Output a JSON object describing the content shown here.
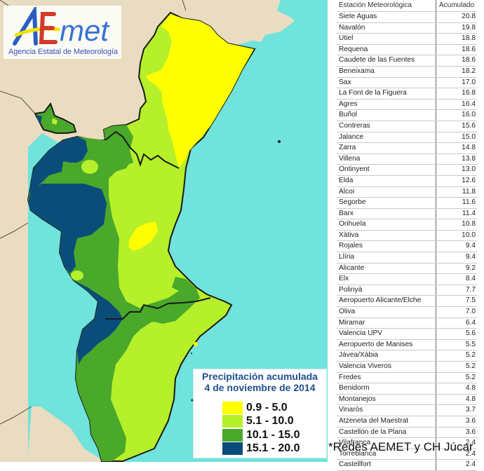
{
  "logo": {
    "brand": "AEmet",
    "subtitle": "Agencia Estatal de Meteorología",
    "colors": {
      "A": "#2a5fc0",
      "E": "#d43a2a",
      "met": "#3a72d0",
      "swoosh": "#f2e200"
    }
  },
  "map": {
    "colors": {
      "land_outside": "#e9dcc0",
      "sea": "#6fe3dc",
      "range_0_9_5_0": "#ffff00",
      "range_5_1_10_0": "#b5f02a",
      "range_10_1_15_0": "#4aa82a",
      "range_15_1_20_0": "#0b4d7a",
      "border": "#1a1a1a"
    }
  },
  "legend": {
    "title_line1": "Precipitación acumulada",
    "title_line2": "4 de noviembre de 2014",
    "items": [
      {
        "label": "0.9 - 5.0",
        "color": "#ffff00"
      },
      {
        "label": "5.1 - 10.0",
        "color": "#b5f02a"
      },
      {
        "label": "10.1 - 15.0",
        "color": "#4aa82a"
      },
      {
        "label": "15.1 - 20.0",
        "color": "#0b4d7a"
      }
    ]
  },
  "table": {
    "headers": {
      "station": "Estación Meteorológica",
      "value": "Acumulado"
    },
    "rows": [
      {
        "station": "Siete Aguas",
        "value": "20.8"
      },
      {
        "station": "Navalón",
        "value": "19.8"
      },
      {
        "station": "Utiel",
        "value": "18.8"
      },
      {
        "station": "Requena",
        "value": "18.6"
      },
      {
        "station": "Caudete de las Fuentes",
        "value": "18.6"
      },
      {
        "station": "Beneixama",
        "value": "18.2"
      },
      {
        "station": "Sax",
        "value": "17.0"
      },
      {
        "station": "La Font de la Figuera",
        "value": "16.8"
      },
      {
        "station": "Agres",
        "value": "16.4"
      },
      {
        "station": "Buñol",
        "value": "16.0"
      },
      {
        "station": "Contreras",
        "value": "15.6"
      },
      {
        "station": "Jalance",
        "value": "15.0"
      },
      {
        "station": "Zarra",
        "value": "14.8"
      },
      {
        "station": "Villena",
        "value": "13.8"
      },
      {
        "station": "Ontinyent",
        "value": "13.0"
      },
      {
        "station": "Elda",
        "value": "12.6"
      },
      {
        "station": "Alcoi",
        "value": "11.8"
      },
      {
        "station": "Segorbe",
        "value": "11.6"
      },
      {
        "station": "Barx",
        "value": "11.4"
      },
      {
        "station": "Orihuela",
        "value": "10.8"
      },
      {
        "station": "Xàtiva",
        "value": "10.0"
      },
      {
        "station": "Rojales",
        "value": "9.4"
      },
      {
        "station": "Llíria",
        "value": "9.4"
      },
      {
        "station": "Alicante",
        "value": "9.2"
      },
      {
        "station": "Elx",
        "value": "8.4"
      },
      {
        "station": "Polinyà",
        "value": "7.7"
      },
      {
        "station": "Aeropuerto Alicante/Elche",
        "value": "7.5"
      },
      {
        "station": "Oliva",
        "value": "7.0"
      },
      {
        "station": "Miramar",
        "value": "6.4"
      },
      {
        "station": "Valencia UPV",
        "value": "5.6"
      },
      {
        "station": "Aeropuerto de Manises",
        "value": "5.5"
      },
      {
        "station": "Jávea/Xàbia",
        "value": "5.2"
      },
      {
        "station": "Valencia Viveros",
        "value": "5.2"
      },
      {
        "station": "Fredes",
        "value": "5.2"
      },
      {
        "station": "Benidorm",
        "value": "4.8"
      },
      {
        "station": "Montanejos",
        "value": "4.8"
      },
      {
        "station": "Vinaròs",
        "value": "3.7"
      },
      {
        "station": "Atzeneta del Maestrat",
        "value": "3.6"
      },
      {
        "station": "Castellón de la Plana",
        "value": "3.6"
      },
      {
        "station": "Vilafranca",
        "value": "2.4"
      },
      {
        "station": "Torreblanca",
        "value": "2.4"
      },
      {
        "station": "Castellfort",
        "value": "2.4"
      }
    ]
  },
  "footnote": "*Redes AEMET y CH Júcar"
}
